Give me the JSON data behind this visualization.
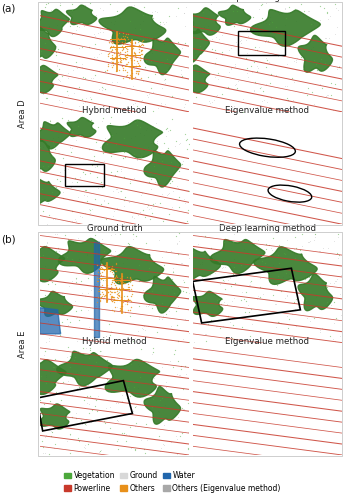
{
  "figure_width": 3.45,
  "figure_height": 5.0,
  "dpi": 100,
  "panel_a_label": "(a)",
  "panel_b_label": "(b)",
  "area_d_label": "Area D",
  "area_e_label": "Area E",
  "row_titles": [
    "Ground truth",
    "Deep learning method",
    "Hybrid method",
    "Eigenvalue method"
  ],
  "legend_items": [
    {
      "label": "Vegetation",
      "color": "#4ca83c"
    },
    {
      "label": "Powerline",
      "color": "#c8392b"
    },
    {
      "label": "Ground",
      "color": "#d8d8d8"
    },
    {
      "label": "Others",
      "color": "#e8901a"
    },
    {
      "label": "Water",
      "color": "#2166ac"
    },
    {
      "label": "Others (Eigenvalue method)",
      "color": "#a8a8a8"
    }
  ],
  "outer_bg": "#ffffff",
  "font_size_title": 6.2,
  "font_size_panel": 7.5,
  "font_size_area": 6.0,
  "font_size_legend": 5.5,
  "ground_color": "#d8d8d8",
  "ground_color_ev": "#c8c8c8",
  "veg_color": "#4ca83c",
  "veg_dark": "#357a28",
  "powerline_color": "#c8392b",
  "tower_color": "#e8901a",
  "water_color": "#2166ac"
}
